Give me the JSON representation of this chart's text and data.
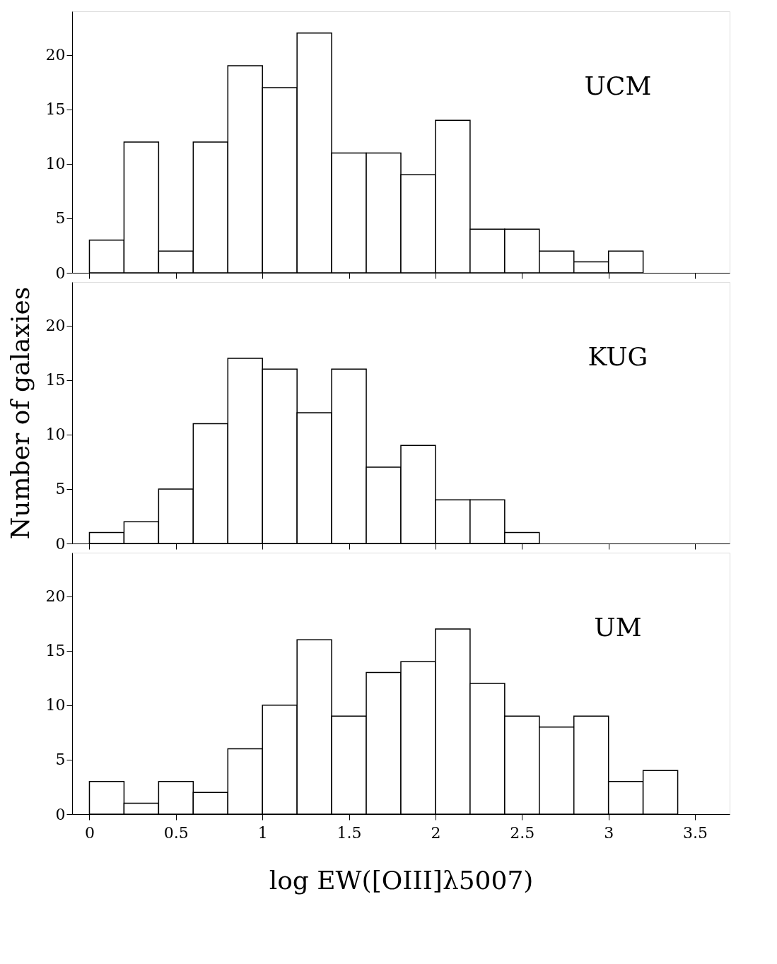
{
  "chart_data": [
    {
      "type": "histogram",
      "annotations": [
        "UCM"
      ],
      "bins": [
        0,
        0.2,
        0.4,
        0.6,
        0.8,
        1.0,
        1.2,
        1.4,
        1.6,
        1.8,
        2.0,
        2.2,
        2.4,
        2.6,
        2.8,
        3.0,
        3.2
      ],
      "values": [
        3,
        12,
        2,
        12,
        19,
        17,
        22,
        11,
        11,
        9,
        14,
        4,
        4,
        2,
        1,
        2
      ],
      "xlim": [
        -0.1,
        3.7
      ],
      "xticks": [
        0,
        0.5,
        1,
        1.5,
        2,
        2.5,
        3,
        3.5
      ],
      "ylim": [
        0,
        24
      ],
      "yticks": [
        0,
        5,
        10,
        15,
        20
      ],
      "tick_labels": "y"
    },
    {
      "type": "histogram",
      "annotations": [
        "KUG"
      ],
      "ylabel": "Number of galaxies",
      "bins": [
        0,
        0.2,
        0.4,
        0.6,
        0.8,
        1.0,
        1.2,
        1.4,
        1.6,
        1.8,
        2.0,
        2.2,
        2.4,
        2.6
      ],
      "values": [
        1,
        2,
        5,
        11,
        17,
        16,
        12,
        16,
        7,
        9,
        4,
        4,
        1
      ],
      "xlim": [
        -0.1,
        3.7
      ],
      "xticks": [
        0,
        0.5,
        1,
        1.5,
        2,
        2.5,
        3,
        3.5
      ],
      "ylim": [
        0,
        24
      ],
      "yticks": [
        0,
        5,
        10,
        15,
        20
      ],
      "tick_labels": "y"
    },
    {
      "type": "histogram",
      "annotations": [
        "UM"
      ],
      "xlabel": "log EW([OIII]λ5007)",
      "bins": [
        0,
        0.2,
        0.4,
        0.6,
        0.8,
        1.0,
        1.2,
        1.4,
        1.6,
        1.8,
        2.0,
        2.2,
        2.4,
        2.6,
        2.8,
        3.0,
        3.2,
        3.4
      ],
      "values": [
        3,
        1,
        3,
        2,
        6,
        10,
        16,
        9,
        13,
        14,
        17,
        12,
        9,
        8,
        9,
        3,
        4
      ],
      "xlim": [
        -0.1,
        3.7
      ],
      "xticks": [
        0,
        0.5,
        1,
        1.5,
        2,
        2.5,
        3,
        3.5
      ],
      "ylim": [
        0,
        24
      ],
      "yticks": [
        0,
        5,
        10,
        15,
        20
      ]
    }
  ]
}
